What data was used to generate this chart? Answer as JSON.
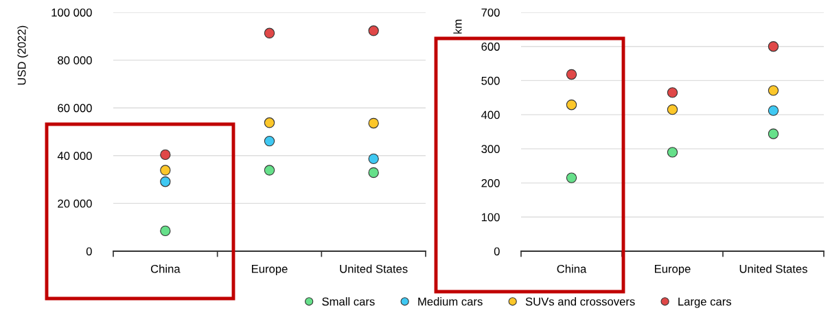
{
  "chart_data": [
    {
      "type": "scatter",
      "ylabel": "USD (2022)",
      "categories": [
        "China",
        "Europe",
        "United States"
      ],
      "series": [
        {
          "name": "Small cars",
          "color": "#66e08a",
          "values": [
            8500,
            33900,
            32900
          ]
        },
        {
          "name": "Medium cars",
          "color": "#3fc8f2",
          "values": [
            29100,
            46100,
            38700
          ]
        },
        {
          "name": "SUVs and crossovers",
          "color": "#fcc72a",
          "values": [
            33900,
            53800,
            53600
          ]
        },
        {
          "name": "Large cars",
          "color": "#e04848",
          "values": [
            40400,
            91300,
            92300
          ]
        }
      ],
      "ylim": [
        0,
        100000
      ],
      "yticks": [
        0,
        {
          "value": 20000,
          "label": "20 000"
        },
        {
          "value": 40000,
          "label": "40 000"
        },
        {
          "value": 60000,
          "label": "60 000"
        },
        {
          "value": 80000,
          "label": "80 000"
        },
        {
          "value": 100000,
          "label": "100 000"
        }
      ],
      "grid": "y",
      "legend": "bottom",
      "marker": "circle"
    },
    {
      "type": "scatter",
      "ylabel": "km",
      "categories": [
        "China",
        "Europe",
        "United States"
      ],
      "series": [
        {
          "name": "Small cars",
          "color": "#66e08a",
          "values": [
            215,
            290,
            344
          ]
        },
        {
          "name": "Medium cars",
          "color": "#3fc8f2",
          "values": [
            null,
            null,
            412
          ]
        },
        {
          "name": "SUVs and crossovers",
          "color": "#fcc72a",
          "values": [
            429,
            415,
            471
          ]
        },
        {
          "name": "Large cars",
          "color": "#e04848",
          "values": [
            518,
            465,
            600
          ]
        }
      ],
      "ylim": [
        0,
        700
      ],
      "yticks": [
        0,
        100,
        200,
        300,
        400,
        500,
        600,
        700
      ],
      "grid": "y",
      "legend": "bottom",
      "marker": "circle"
    }
  ]
}
